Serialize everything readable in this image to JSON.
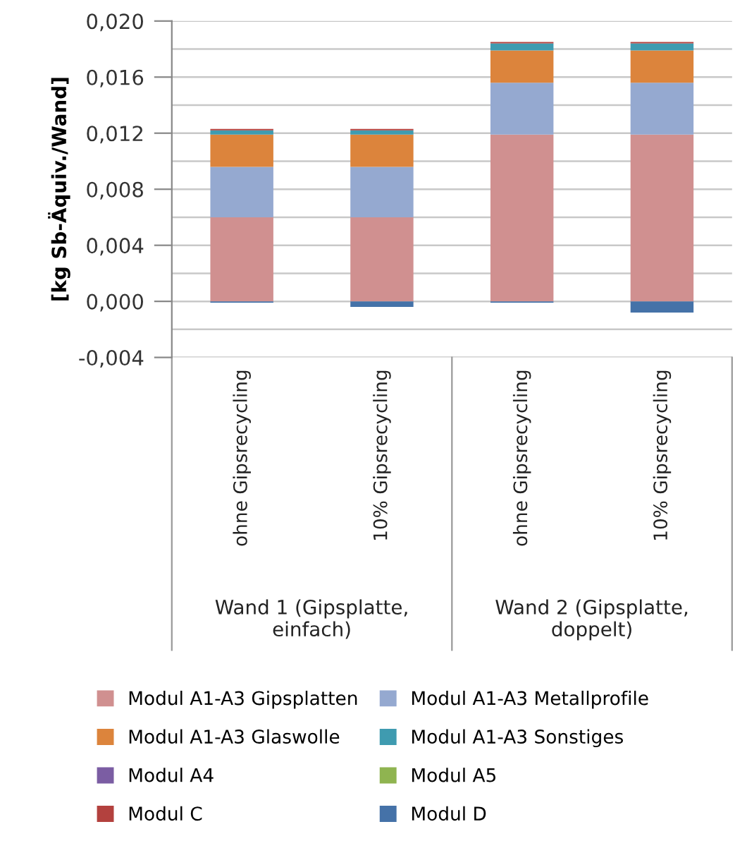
{
  "chart_data": {
    "type": "bar",
    "stacked": true,
    "ylabel": "[kg Sb-Äquiv./Wand]",
    "categories": [
      "ohne Gipsrecycling",
      "10% Gipsrecycling",
      "ohne Gipsrecycling",
      "10% Gipsrecycling"
    ],
    "series": [
      {
        "name": "Modul A1-A3 Gipsplatten",
        "color": "#d09090",
        "values": [
          0.006,
          0.006,
          0.0119,
          0.0119
        ]
      },
      {
        "name": "Modul A1-A3 Metallprofile",
        "color": "#95a9d0",
        "values": [
          0.0036,
          0.0036,
          0.0037,
          0.0037
        ]
      },
      {
        "name": "Modul A1-A3 Glaswolle",
        "color": "#dc843c",
        "values": [
          0.0023,
          0.0023,
          0.0023,
          0.0023
        ]
      },
      {
        "name": "Modul A1-A3 Sonstiges",
        "color": "#3f9bb0",
        "values": [
          0.0003,
          0.0003,
          0.0005,
          0.0005
        ]
      },
      {
        "name": "Modul A4",
        "color": "#7b5da3",
        "values": [
          0,
          0,
          0,
          0
        ]
      },
      {
        "name": "Modul A5",
        "color": "#8fb450",
        "values": [
          0,
          0,
          0,
          0
        ]
      },
      {
        "name": "Modul C",
        "color": "#b3413e",
        "values": [
          0.0001,
          0.0001,
          0.0001,
          0.0001
        ]
      },
      {
        "name": "Modul D",
        "color": "#4572a8",
        "values": [
          -0.0001,
          -0.0004,
          -0.0001,
          -0.0008
        ]
      }
    ],
    "ylim": [
      -0.004,
      0.02
    ],
    "yticks": [
      {
        "value": -0.004,
        "label": "-0,004"
      },
      {
        "value": -0.002,
        "label": null
      },
      {
        "value": 0.0,
        "label": "0,000"
      },
      {
        "value": 0.002,
        "label": null
      },
      {
        "value": 0.004,
        "label": "0,004"
      },
      {
        "value": 0.006,
        "label": null
      },
      {
        "value": 0.008,
        "label": "0,008"
      },
      {
        "value": 0.01,
        "label": null
      },
      {
        "value": 0.012,
        "label": "0,012"
      },
      {
        "value": 0.014,
        "label": null
      },
      {
        "value": 0.016,
        "label": "0,016"
      },
      {
        "value": 0.018,
        "label": null
      },
      {
        "value": 0.02,
        "label": "0,020"
      }
    ],
    "grid": "y",
    "legend": "bottom",
    "annotations": [
      "Wand 1 (Gipsplatte,\neinfach)",
      "Wand 2 (Gipsplatte,\ndoppelt)"
    ]
  }
}
